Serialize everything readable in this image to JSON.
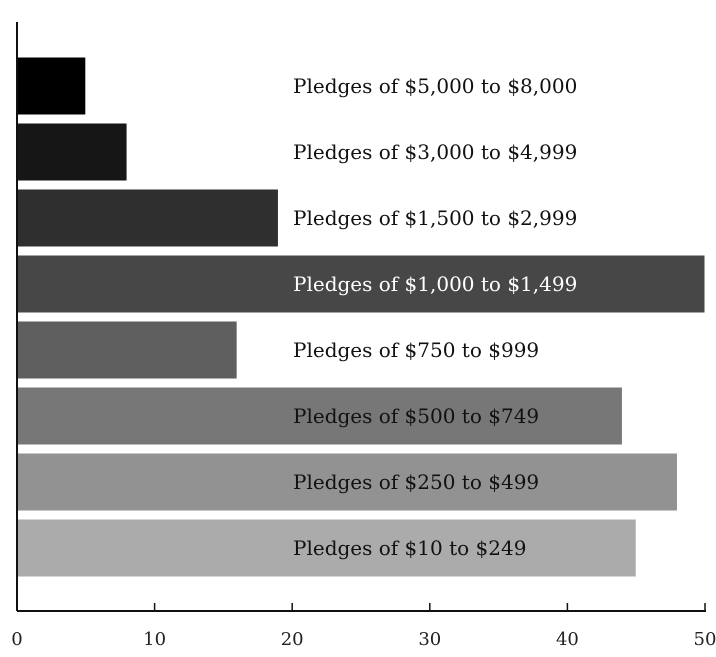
{
  "chart_data": {
    "type": "bar",
    "orientation": "horizontal",
    "title": "",
    "xlabel": "",
    "ylabel": "",
    "xlim": [
      0,
      50
    ],
    "xticks": [
      "0",
      "10",
      "20",
      "30",
      "40",
      "50"
    ],
    "grid": false,
    "legend": "none",
    "bars": [
      {
        "label": "Pledges of $5,000 to $8,000",
        "value": 5,
        "color": "#000000",
        "label_color": "#111111"
      },
      {
        "label": "Pledges of $3,000 to $4,999",
        "value": 8,
        "color": "#161616",
        "label_color": "#111111"
      },
      {
        "label": "Pledges of $1,500 to $2,999",
        "value": 19,
        "color": "#2f2f2f",
        "label_color": "#111111"
      },
      {
        "label": "Pledges of $1,000 to $1,499",
        "value": 50,
        "color": "#474747",
        "label_color": "#ffffff"
      },
      {
        "label": "Pledges of $750 to $999",
        "value": 16,
        "color": "#5f5f5f",
        "label_color": "#111111"
      },
      {
        "label": "Pledges of $500 to $749",
        "value": 44,
        "color": "#777777",
        "label_color": "#111111"
      },
      {
        "label": "Pledges of $250 to $499",
        "value": 48,
        "color": "#929292",
        "label_color": "#111111"
      },
      {
        "label": "Pledges of $10 to $249",
        "value": 45,
        "color": "#ababab",
        "label_color": "#111111"
      }
    ]
  }
}
